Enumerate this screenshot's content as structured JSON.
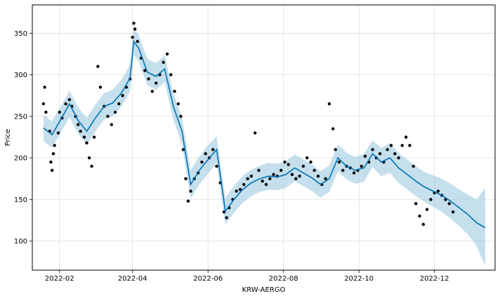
{
  "chart_data": {
    "type": "line",
    "xlabel": "KRW-AERGO",
    "ylabel": "Price",
    "x_ticks": [
      "2022-02",
      "2022-04",
      "2022-06",
      "2022-08",
      "2022-10",
      "2022-12"
    ],
    "x_tick_values": [
      "2022-02-01",
      "2022-04-01",
      "2022-06-01",
      "2022-08-01",
      "2022-10-01",
      "2022-12-01"
    ],
    "y_ticks": [
      "100",
      "150",
      "200",
      "250",
      "300",
      "350"
    ],
    "y_tick_values": [
      100,
      150,
      200,
      250,
      300,
      350
    ],
    "xlim": [
      "2022-01-10",
      "2023-01-19"
    ],
    "ylim": [
      65,
      384
    ],
    "grid": true,
    "colors": {
      "forecast": "#0072B2",
      "band": "#9ecae1",
      "observed": "#000000",
      "grid": "#dddddd"
    },
    "series": [
      {
        "type": "forecast",
        "x": [
          "2022-01-19",
          "2022-01-26",
          "2022-02-02",
          "2022-02-09",
          "2022-02-16",
          "2022-02-23",
          "2022-03-02",
          "2022-03-09",
          "2022-03-16",
          "2022-03-23",
          "2022-03-30",
          "2022-04-02",
          "2022-04-06",
          "2022-04-13",
          "2022-04-20",
          "2022-04-27",
          "2022-05-04",
          "2022-05-11",
          "2022-05-18",
          "2022-05-25",
          "2022-06-01",
          "2022-06-08",
          "2022-06-15",
          "2022-06-22",
          "2022-06-29",
          "2022-07-06",
          "2022-07-13",
          "2022-07-20",
          "2022-07-27",
          "2022-08-03",
          "2022-08-10",
          "2022-08-17",
          "2022-08-24",
          "2022-08-31",
          "2022-09-07",
          "2022-09-14",
          "2022-09-21",
          "2022-09-28",
          "2022-10-05",
          "2022-10-12",
          "2022-10-19",
          "2022-10-26",
          "2022-11-02",
          "2022-11-09",
          "2022-11-16",
          "2022-11-23",
          "2022-11-30",
          "2022-12-07",
          "2022-12-14",
          "2022-12-21",
          "2022-12-28",
          "2023-01-04",
          "2023-01-11"
        ],
        "y": [
          236,
          228,
          246,
          265,
          245,
          232,
          248,
          262,
          266,
          278,
          296,
          340,
          332,
          303,
          298,
          307,
          262,
          232,
          168,
          185,
          198,
          210,
          136,
          150,
          162,
          170,
          175,
          178,
          177,
          180,
          188,
          182,
          176,
          168,
          175,
          200,
          190,
          185,
          188,
          205,
          195,
          200,
          188,
          180,
          172,
          165,
          160,
          155,
          148,
          140,
          132,
          122,
          116
        ]
      },
      {
        "type": "band_upper",
        "x": [
          "2022-01-19",
          "2022-01-26",
          "2022-02-02",
          "2022-02-09",
          "2022-02-16",
          "2022-02-23",
          "2022-03-02",
          "2022-03-09",
          "2022-03-16",
          "2022-03-23",
          "2022-03-30",
          "2022-04-02",
          "2022-04-06",
          "2022-04-13",
          "2022-04-20",
          "2022-04-27",
          "2022-05-04",
          "2022-05-11",
          "2022-05-18",
          "2022-05-25",
          "2022-06-01",
          "2022-06-08",
          "2022-06-15",
          "2022-06-22",
          "2022-06-29",
          "2022-07-06",
          "2022-07-13",
          "2022-07-20",
          "2022-07-27",
          "2022-08-03",
          "2022-08-10",
          "2022-08-17",
          "2022-08-24",
          "2022-08-31",
          "2022-09-07",
          "2022-09-14",
          "2022-09-21",
          "2022-09-28",
          "2022-10-05",
          "2022-10-12",
          "2022-10-19",
          "2022-10-26",
          "2022-11-02",
          "2022-11-09",
          "2022-11-16",
          "2022-11-23",
          "2022-11-30",
          "2022-12-07",
          "2022-12-14",
          "2022-12-21",
          "2022-12-28",
          "2023-01-04",
          "2023-01-11"
        ],
        "y": [
          252,
          244,
          262,
          281,
          261,
          248,
          264,
          278,
          282,
          294,
          312,
          356,
          348,
          319,
          314,
          323,
          278,
          248,
          185,
          202,
          215,
          226,
          152,
          166,
          178,
          186,
          191,
          194,
          193,
          196,
          204,
          198,
          192,
          184,
          191,
          216,
          206,
          201,
          205,
          221,
          212,
          218,
          206,
          198,
          190,
          183,
          179,
          175,
          169,
          162,
          156,
          150,
          164
        ]
      },
      {
        "type": "band_lower",
        "x": [
          "2022-01-19",
          "2022-01-26",
          "2022-02-02",
          "2022-02-09",
          "2022-02-16",
          "2022-02-23",
          "2022-03-02",
          "2022-03-09",
          "2022-03-16",
          "2022-03-23",
          "2022-03-30",
          "2022-04-02",
          "2022-04-06",
          "2022-04-13",
          "2022-04-20",
          "2022-04-27",
          "2022-05-04",
          "2022-05-11",
          "2022-05-18",
          "2022-05-25",
          "2022-06-01",
          "2022-06-08",
          "2022-06-15",
          "2022-06-22",
          "2022-06-29",
          "2022-07-06",
          "2022-07-13",
          "2022-07-20",
          "2022-07-27",
          "2022-08-03",
          "2022-08-10",
          "2022-08-17",
          "2022-08-24",
          "2022-08-31",
          "2022-09-07",
          "2022-09-14",
          "2022-09-21",
          "2022-09-28",
          "2022-10-05",
          "2022-10-12",
          "2022-10-19",
          "2022-10-26",
          "2022-11-02",
          "2022-11-09",
          "2022-11-16",
          "2022-11-23",
          "2022-11-30",
          "2022-12-07",
          "2022-12-14",
          "2022-12-21",
          "2022-12-28",
          "2023-01-04",
          "2023-01-11"
        ],
        "y": [
          220,
          212,
          230,
          249,
          229,
          216,
          232,
          246,
          250,
          262,
          280,
          324,
          316,
          287,
          282,
          291,
          246,
          216,
          151,
          168,
          181,
          194,
          120,
          134,
          146,
          154,
          159,
          162,
          161,
          164,
          172,
          166,
          160,
          152,
          159,
          184,
          174,
          169,
          171,
          189,
          178,
          182,
          170,
          162,
          154,
          147,
          141,
          135,
          127,
          118,
          108,
          94,
          70
        ]
      },
      {
        "type": "observed",
        "x": [
          "2022-01-19",
          "2022-01-20",
          "2022-01-21",
          "2022-01-24",
          "2022-01-25",
          "2022-01-26",
          "2022-01-27",
          "2022-01-28",
          "2022-01-31",
          "2022-02-01",
          "2022-02-03",
          "2022-02-06",
          "2022-02-09",
          "2022-02-11",
          "2022-02-14",
          "2022-02-16",
          "2022-02-18",
          "2022-02-21",
          "2022-02-23",
          "2022-02-25",
          "2022-02-27",
          "2022-03-01",
          "2022-03-04",
          "2022-03-06",
          "2022-03-09",
          "2022-03-12",
          "2022-03-15",
          "2022-03-18",
          "2022-03-21",
          "2022-03-24",
          "2022-03-27",
          "2022-03-30",
          "2022-04-01",
          "2022-04-02",
          "2022-04-03",
          "2022-04-05",
          "2022-04-08",
          "2022-04-11",
          "2022-04-14",
          "2022-04-17",
          "2022-04-20",
          "2022-04-23",
          "2022-04-26",
          "2022-04-29",
          "2022-05-02",
          "2022-05-05",
          "2022-05-08",
          "2022-05-10",
          "2022-05-12",
          "2022-05-14",
          "2022-05-16",
          "2022-05-18",
          "2022-05-21",
          "2022-05-24",
          "2022-05-27",
          "2022-05-30",
          "2022-06-02",
          "2022-06-05",
          "2022-06-08",
          "2022-06-11",
          "2022-06-14",
          "2022-06-16",
          "2022-06-18",
          "2022-06-21",
          "2022-06-24",
          "2022-06-27",
          "2022-06-30",
          "2022-07-03",
          "2022-07-06",
          "2022-07-09",
          "2022-07-12",
          "2022-07-15",
          "2022-07-18",
          "2022-07-21",
          "2022-07-24",
          "2022-07-27",
          "2022-07-30",
          "2022-08-02",
          "2022-08-05",
          "2022-08-08",
          "2022-08-11",
          "2022-08-14",
          "2022-08-17",
          "2022-08-20",
          "2022-08-23",
          "2022-08-26",
          "2022-08-29",
          "2022-09-01",
          "2022-09-04",
          "2022-09-07",
          "2022-09-10",
          "2022-09-12",
          "2022-09-15",
          "2022-09-18",
          "2022-09-21",
          "2022-09-24",
          "2022-09-27",
          "2022-09-30",
          "2022-10-03",
          "2022-10-06",
          "2022-10-09",
          "2022-10-12",
          "2022-10-15",
          "2022-10-18",
          "2022-10-21",
          "2022-10-24",
          "2022-10-27",
          "2022-10-30",
          "2022-11-02",
          "2022-11-05",
          "2022-11-08",
          "2022-11-11",
          "2022-11-14",
          "2022-11-16",
          "2022-11-19",
          "2022-11-22",
          "2022-11-25",
          "2022-11-28",
          "2022-12-01",
          "2022-12-04",
          "2022-12-07",
          "2022-12-10",
          "2022-12-13",
          "2022-12-16"
        ],
        "y": [
          265,
          285,
          255,
          232,
          195,
          185,
          205,
          215,
          230,
          255,
          248,
          265,
          270,
          262,
          250,
          240,
          232,
          225,
          218,
          200,
          190,
          225,
          310,
          285,
          262,
          250,
          240,
          255,
          265,
          275,
          285,
          295,
          345,
          362,
          355,
          340,
          320,
          305,
          295,
          280,
          290,
          300,
          315,
          325,
          300,
          280,
          265,
          250,
          210,
          175,
          148,
          160,
          175,
          182,
          195,
          205,
          200,
          210,
          190,
          170,
          135,
          128,
          140,
          150,
          160,
          162,
          168,
          175,
          178,
          230,
          185,
          172,
          168,
          175,
          180,
          178,
          185,
          195,
          192,
          180,
          175,
          178,
          190,
          200,
          195,
          185,
          178,
          168,
          175,
          265,
          235,
          210,
          195,
          185,
          190,
          188,
          182,
          185,
          190,
          202,
          195,
          210,
          200,
          205,
          195,
          210,
          215,
          205,
          200,
          215,
          225,
          215,
          190,
          145,
          130,
          120,
          138,
          150,
          158,
          160,
          155,
          150,
          145,
          135
        ]
      }
    ]
  }
}
